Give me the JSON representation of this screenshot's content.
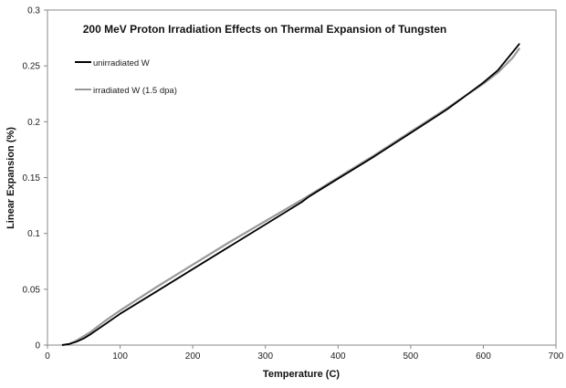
{
  "chart_data": {
    "type": "line",
    "title": "200 MeV Proton Irradiation Effects on Thermal Expansion of Tungsten",
    "xlabel": "Temperature (C)",
    "ylabel": "Linear Expansion (%)",
    "xlim": [
      0,
      700
    ],
    "ylim": [
      0,
      0.3
    ],
    "x_ticks": [
      0,
      100,
      200,
      300,
      400,
      500,
      600,
      700
    ],
    "y_ticks": [
      0,
      0.05,
      0.1,
      0.15,
      0.2,
      0.25,
      0.3
    ],
    "x_tick_labels": [
      "0",
      "100",
      "200",
      "300",
      "400",
      "500",
      "600",
      "700"
    ],
    "y_tick_labels": [
      "0",
      "0.05",
      "0.1",
      "0.15",
      "0.2",
      "0.25",
      "0.3"
    ],
    "grid": false,
    "legend_position": "top-left",
    "series": [
      {
        "name": "unirradiated W",
        "color": "#000000",
        "x": [
          20,
          30,
          40,
          50,
          60,
          80,
          100,
          150,
          200,
          250,
          300,
          350,
          360,
          400,
          450,
          500,
          550,
          600,
          620,
          640,
          650
        ],
        "y": [
          0,
          0.001,
          0.003,
          0.006,
          0.01,
          0.019,
          0.028,
          0.048,
          0.068,
          0.088,
          0.108,
          0.128,
          0.133,
          0.149,
          0.169,
          0.19,
          0.211,
          0.235,
          0.246,
          0.262,
          0.27
        ]
      },
      {
        "name": "irradiated W (1.5 dpa)",
        "color": "#999999",
        "x": [
          20,
          30,
          40,
          50,
          60,
          80,
          100,
          150,
          200,
          250,
          300,
          350,
          400,
          450,
          500,
          550,
          600,
          620,
          640,
          650
        ],
        "y": [
          0,
          0.001,
          0.004,
          0.008,
          0.012,
          0.022,
          0.031,
          0.052,
          0.072,
          0.092,
          0.111,
          0.13,
          0.15,
          0.17,
          0.191,
          0.212,
          0.234,
          0.244,
          0.257,
          0.266
        ]
      }
    ]
  }
}
